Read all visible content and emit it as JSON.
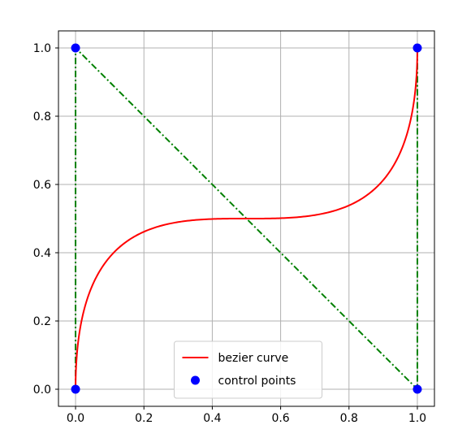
{
  "chart_data": {
    "type": "line",
    "title": "",
    "xlabel": "",
    "ylabel": "",
    "xlim": [
      -0.05,
      1.05
    ],
    "ylim": [
      -0.05,
      1.05
    ],
    "grid": true,
    "legend_placement": "lower center",
    "x_ticks": [
      {
        "value": 0.0,
        "label": "0.0"
      },
      {
        "value": 0.2,
        "label": "0.2"
      },
      {
        "value": 0.4,
        "label": "0.4"
      },
      {
        "value": 0.6,
        "label": "0.6"
      },
      {
        "value": 0.8,
        "label": "0.8"
      },
      {
        "value": 1.0,
        "label": "1.0"
      }
    ],
    "y_ticks": [
      {
        "value": 0.0,
        "label": "0.0"
      },
      {
        "value": 0.2,
        "label": "0.2"
      },
      {
        "value": 0.4,
        "label": "0.4"
      },
      {
        "value": 0.6,
        "label": "0.6"
      },
      {
        "value": 0.8,
        "label": "0.8"
      },
      {
        "value": 1.0,
        "label": "1.0"
      }
    ],
    "series": [
      {
        "name": "bezier curve",
        "type": "line",
        "color": "#ff0000",
        "style": "solid",
        "control_points": [
          [
            0,
            0
          ],
          [
            0,
            1
          ],
          [
            1,
            0
          ],
          [
            1,
            1
          ]
        ]
      },
      {
        "name": "control points",
        "type": "scatter",
        "color": "#0000ff",
        "points": [
          [
            0,
            0
          ],
          [
            0,
            1
          ],
          [
            1,
            0
          ],
          [
            1,
            1
          ]
        ]
      },
      {
        "type": "line",
        "color": "#008000",
        "style": "dashdot",
        "points": [
          [
            0,
            0
          ],
          [
            0,
            1
          ],
          [
            1,
            0
          ],
          [
            1,
            1
          ]
        ]
      }
    ]
  }
}
